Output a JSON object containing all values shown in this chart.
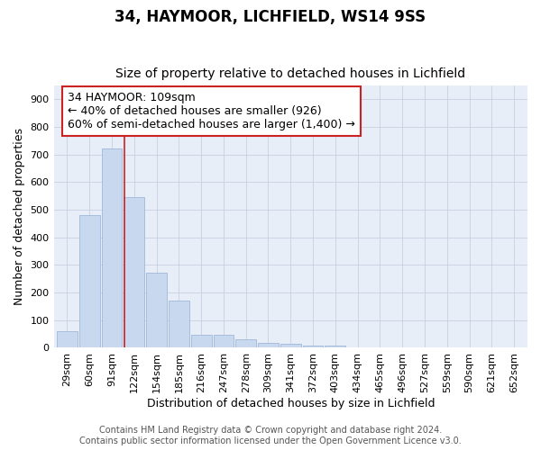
{
  "title1": "34, HAYMOOR, LICHFIELD, WS14 9SS",
  "title2": "Size of property relative to detached houses in Lichfield",
  "xlabel": "Distribution of detached houses by size in Lichfield",
  "ylabel": "Number of detached properties",
  "categories": [
    "29sqm",
    "60sqm",
    "91sqm",
    "122sqm",
    "154sqm",
    "185sqm",
    "216sqm",
    "247sqm",
    "278sqm",
    "309sqm",
    "341sqm",
    "372sqm",
    "403sqm",
    "434sqm",
    "465sqm",
    "496sqm",
    "527sqm",
    "559sqm",
    "590sqm",
    "621sqm",
    "652sqm"
  ],
  "values": [
    60,
    480,
    720,
    545,
    272,
    172,
    46,
    46,
    30,
    18,
    15,
    7,
    7,
    0,
    0,
    0,
    0,
    0,
    0,
    0,
    0
  ],
  "bar_color": "#c8d8ef",
  "bar_edge_color": "#a0b8d8",
  "grid_color": "#c8d0e0",
  "annotation_title": "34 HAYMOOR: 109sqm",
  "annotation_line1": "← 40% of detached houses are smaller (926)",
  "annotation_line2": "60% of semi-detached houses are larger (1,400) →",
  "vline_color": "#cc2222",
  "footer1": "Contains HM Land Registry data © Crown copyright and database right 2024.",
  "footer2": "Contains public sector information licensed under the Open Government Licence v3.0.",
  "bg_color": "#ffffff",
  "plot_bg_color": "#e8eef8",
  "title1_fontsize": 12,
  "title2_fontsize": 10,
  "ylabel_fontsize": 9,
  "xlabel_fontsize": 9,
  "tick_fontsize": 8,
  "footer_fontsize": 7,
  "annotation_fontsize": 9
}
